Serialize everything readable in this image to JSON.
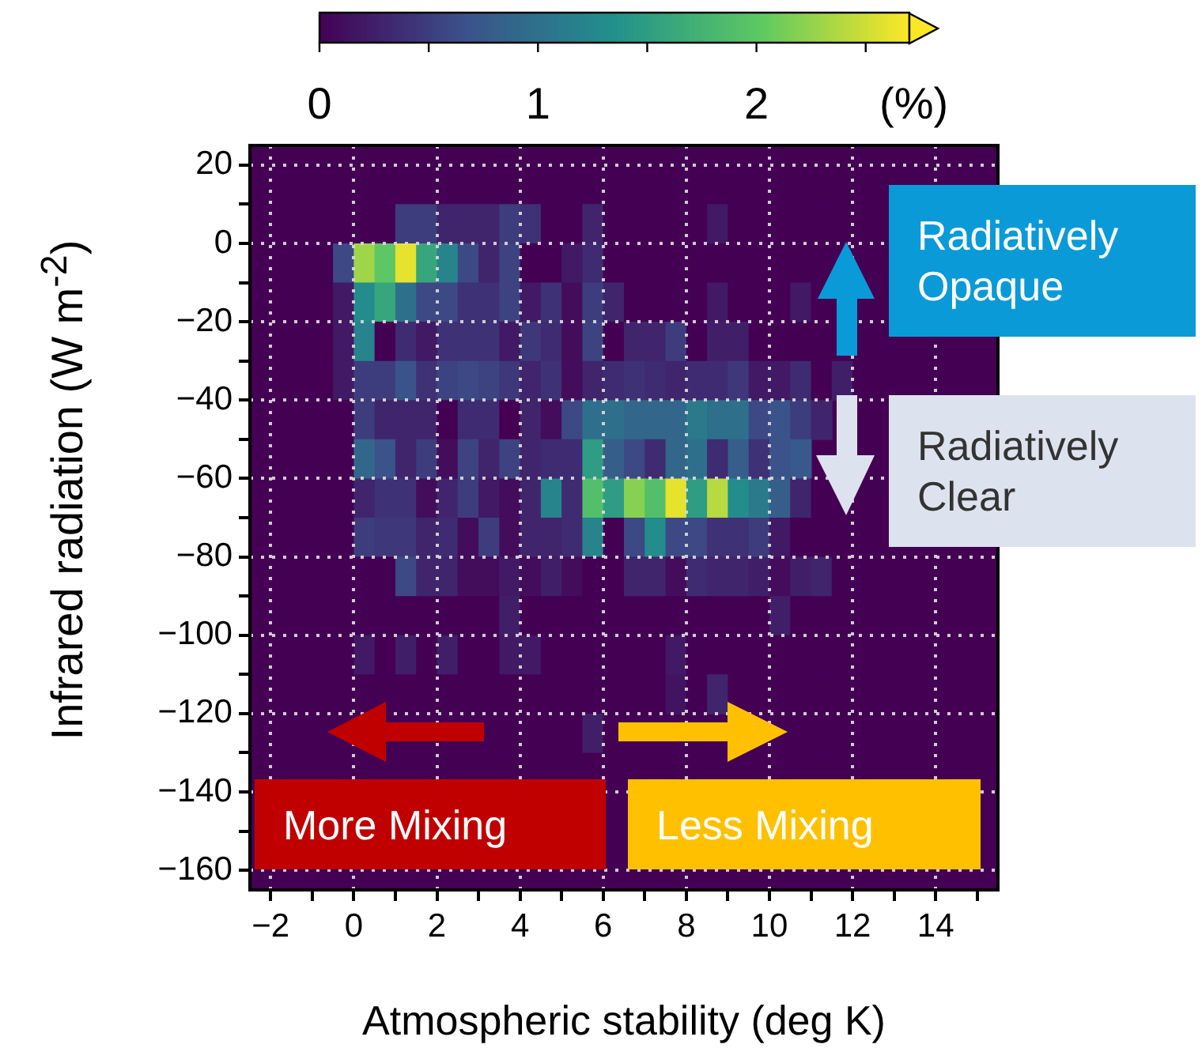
{
  "chart_data": {
    "type": "heatmap",
    "xlabel": "Atmospheric stability (deg K)",
    "ylabel": "Infrared radiation (W m$^{-2}$)",
    "clabel": "(%)",
    "x": [
      -2.25,
      -1.75,
      -1.25,
      -0.75,
      -0.25,
      0.25,
      0.75,
      1.25,
      1.75,
      2.25,
      2.75,
      3.25,
      3.75,
      4.25,
      4.75,
      5.25,
      5.75,
      6.25,
      6.75,
      7.25,
      7.75,
      8.25,
      8.75,
      9.25,
      9.75,
      10.25,
      10.75,
      11.25,
      11.75,
      12.25,
      12.75,
      13.25,
      13.75,
      14.25,
      14.75,
      15.25
    ],
    "y": [
      15,
      5,
      -5,
      -15,
      -25,
      -35,
      -45,
      -55,
      -65,
      -75,
      -85,
      -95,
      -105,
      -115,
      -125,
      -135,
      -145,
      -155
    ],
    "cells": [
      [
        0,
        0,
        0,
        0,
        0,
        0,
        0,
        0,
        0,
        0,
        0,
        0,
        0,
        0,
        0,
        0,
        0,
        0,
        0,
        0,
        0,
        0,
        0,
        0,
        0,
        0,
        0,
        0,
        0,
        0,
        0,
        0,
        0,
        0,
        0,
        0
      ],
      [
        0,
        0,
        0,
        0,
        0,
        0,
        0,
        0.5,
        0.5,
        0.3,
        0.3,
        0.3,
        0.5,
        0.4,
        0,
        0,
        0.3,
        0,
        0,
        0,
        0,
        0,
        0.2,
        0,
        0,
        0,
        0,
        0,
        0,
        0,
        0,
        null,
        null,
        null,
        null,
        null
      ],
      [
        0,
        0,
        0,
        0,
        0.6,
        2.3,
        2.0,
        2.6,
        1.6,
        1.2,
        0.6,
        0.3,
        0.55,
        0,
        0,
        0.2,
        0.35,
        0,
        0,
        0,
        0,
        0,
        0,
        0,
        0,
        0,
        0,
        0,
        null,
        0,
        0,
        null,
        null,
        null,
        null,
        null
      ],
      [
        0,
        0,
        0,
        0,
        0.2,
        1.3,
        1.6,
        1.0,
        0.6,
        0.6,
        0.4,
        0.4,
        0.55,
        0.2,
        0.4,
        0.1,
        0.5,
        0.3,
        0,
        0,
        0,
        0,
        0.2,
        0,
        0,
        0,
        0.2,
        0,
        null,
        null,
        0,
        null,
        null,
        null,
        null,
        null
      ],
      [
        0,
        0,
        0,
        0,
        0.2,
        1.2,
        0,
        0.35,
        0.2,
        0.4,
        0.4,
        0.4,
        0.2,
        0.45,
        0.35,
        0.1,
        0.55,
        0,
        0.3,
        0.3,
        0.5,
        0,
        0.25,
        0.25,
        0,
        0,
        0,
        0,
        null,
        0,
        0,
        null,
        null,
        null,
        null,
        null
      ],
      [
        0,
        0,
        0,
        0,
        0.2,
        0.5,
        0.5,
        0.7,
        0.4,
        0.55,
        0.6,
        0.55,
        0.45,
        0.3,
        0.4,
        0.1,
        0.3,
        0.35,
        0.4,
        0.35,
        0.3,
        0.35,
        0.35,
        0.45,
        0.2,
        0.2,
        0.35,
        0,
        0.25,
        0,
        0,
        0,
        0,
        0,
        0,
        0
      ],
      [
        0,
        0,
        0,
        0,
        0,
        0.5,
        0.3,
        0.3,
        0.3,
        0,
        0.35,
        0.35,
        0,
        0.3,
        0.1,
        0.6,
        1.0,
        1.0,
        0.9,
        0.9,
        0.9,
        1.1,
        1.0,
        1.0,
        0.6,
        0.7,
        0.5,
        0.3,
        null,
        0,
        0,
        null,
        null,
        null,
        null,
        null
      ],
      [
        0,
        0,
        0,
        0,
        0,
        0.9,
        0.7,
        0.3,
        0.5,
        0.1,
        0.55,
        0.3,
        0.55,
        0.3,
        0.35,
        0.35,
        1.5,
        0.8,
        0.6,
        0.35,
        0.9,
        1.0,
        0.35,
        0.8,
        0.4,
        0.7,
        0.75,
        null,
        null,
        null,
        0,
        null,
        null,
        null,
        null,
        null
      ],
      [
        0,
        0,
        0,
        0,
        0,
        0.3,
        0.4,
        0.4,
        0.1,
        0.3,
        0.5,
        0.2,
        0.1,
        0.3,
        1.2,
        0.35,
        1.9,
        1.5,
        2.2,
        1.9,
        2.6,
        1.5,
        2.4,
        1.3,
        1.1,
        0.8,
        0.3,
        0,
        null,
        0,
        0,
        null,
        null,
        null,
        null,
        null
      ],
      [
        0,
        0,
        0,
        0,
        0,
        0.5,
        0.45,
        0.45,
        0.3,
        0.35,
        0.1,
        0.5,
        0.1,
        0.3,
        0.3,
        0.35,
        1.2,
        0,
        0.6,
        1.3,
        0.6,
        0.6,
        0.4,
        0.4,
        0.5,
        0.2,
        0,
        0,
        0,
        0,
        0,
        null,
        null,
        null,
        null,
        null
      ],
      [
        0,
        0,
        0,
        0,
        0,
        0,
        0,
        0.6,
        0.3,
        0.3,
        0.1,
        0.1,
        0.2,
        0.1,
        0.25,
        0.1,
        0,
        0,
        0.3,
        0.3,
        0.1,
        0.35,
        0.3,
        0.3,
        0.25,
        0.1,
        0.25,
        0.3,
        0,
        0,
        0,
        0,
        0,
        0,
        0,
        0
      ],
      [
        0,
        0,
        0,
        0,
        0,
        0,
        0,
        0,
        0,
        0,
        0,
        0,
        0.25,
        0,
        0,
        0,
        0,
        0,
        0,
        0,
        0,
        0,
        0,
        0,
        0,
        0.25,
        0,
        0,
        0,
        0,
        0,
        0,
        0,
        0,
        0,
        0
      ],
      [
        0,
        0,
        0,
        0,
        0,
        0.2,
        0,
        0.25,
        0,
        0.25,
        0,
        0,
        0.2,
        0.2,
        0,
        0,
        0,
        0,
        0,
        0,
        0.2,
        0,
        0,
        0,
        0,
        0,
        0,
        0,
        0,
        0,
        0,
        0,
        0,
        0,
        0,
        0
      ],
      [
        0,
        0,
        0,
        0,
        0,
        0,
        0,
        0,
        0,
        0,
        0,
        0,
        0,
        0,
        0,
        0,
        0,
        0,
        0,
        0,
        0.15,
        0,
        0.3,
        0,
        0,
        0,
        0,
        0,
        0,
        0,
        0,
        0,
        0,
        0,
        0,
        0
      ],
      [
        0,
        0,
        0,
        0,
        null,
        null,
        null,
        null,
        null,
        null,
        null,
        0,
        0,
        0,
        0,
        0,
        0.25,
        0,
        null,
        null,
        null,
        null,
        null,
        null,
        null,
        0,
        0,
        0,
        0,
        0,
        0,
        0,
        0,
        0,
        0,
        0
      ],
      [
        0,
        0,
        0,
        0,
        0,
        0,
        0,
        0,
        0,
        0,
        0,
        0,
        0,
        0,
        0,
        0,
        0,
        0,
        0,
        0,
        0,
        0,
        0,
        0,
        0,
        0,
        0,
        0,
        0,
        0,
        0,
        0,
        0,
        0,
        0,
        0
      ],
      [
        null,
        null,
        null,
        null,
        null,
        null,
        null,
        null,
        null,
        null,
        null,
        null,
        null,
        null,
        null,
        null,
        null,
        0,
        null,
        null,
        null,
        null,
        null,
        null,
        null,
        null,
        null,
        null,
        null,
        null,
        null,
        null,
        null,
        null,
        null,
        0
      ],
      [
        null,
        null,
        null,
        null,
        null,
        null,
        null,
        null,
        null,
        null,
        null,
        null,
        null,
        null,
        null,
        null,
        null,
        0,
        null,
        null,
        null,
        null,
        null,
        null,
        null,
        null,
        null,
        null,
        null,
        null,
        null,
        null,
        null,
        null,
        null,
        0
      ]
    ],
    "clim": [
      0,
      2.7
    ],
    "cticks": [
      0,
      {
        "value": 0.5,
        "label": null
      },
      1,
      {
        "value": 1.5,
        "label": null
      },
      2,
      {
        "value": 2.5,
        "label": null
      }
    ],
    "xlim": [
      -2.5,
      15.5
    ],
    "ylim": [
      -165,
      25
    ],
    "xticks": [
      {
        "value": -2,
        "label": "−2"
      },
      {
        "value": -1,
        "label": null
      },
      0,
      {
        "value": 1,
        "label": null
      },
      2,
      {
        "value": 3,
        "label": null
      },
      4,
      {
        "value": 5,
        "label": null
      },
      6,
      {
        "value": 7,
        "label": null
      },
      8,
      {
        "value": 9,
        "label": null
      },
      10,
      {
        "value": 11,
        "label": null
      },
      12,
      {
        "value": 13,
        "label": null
      },
      14,
      {
        "value": 15,
        "label": null
      }
    ],
    "yticks": [
      20,
      {
        "value": 10,
        "label": null
      },
      0,
      {
        "value": -10,
        "label": null
      },
      {
        "value": -20,
        "label": "−20"
      },
      {
        "value": -30,
        "label": null
      },
      {
        "value": -40,
        "label": "−40"
      },
      {
        "value": -50,
        "label": null
      },
      {
        "value": -60,
        "label": "−60"
      },
      {
        "value": -70,
        "label": null
      },
      {
        "value": -80,
        "label": "−80"
      },
      {
        "value": -90,
        "label": null
      },
      {
        "value": -100,
        "label": "−100"
      },
      {
        "value": -110,
        "label": null
      },
      {
        "value": -120,
        "label": "−120"
      },
      {
        "value": -130,
        "label": null
      },
      {
        "value": -140,
        "label": "−140"
      },
      {
        "value": -150,
        "label": null
      },
      {
        "value": -160,
        "label": "−160"
      }
    ],
    "grid": true,
    "annotations": [
      "Radiatively Opaque",
      "Radiatively Clear",
      "More Mixing",
      "Less Mixing"
    ]
  }
}
